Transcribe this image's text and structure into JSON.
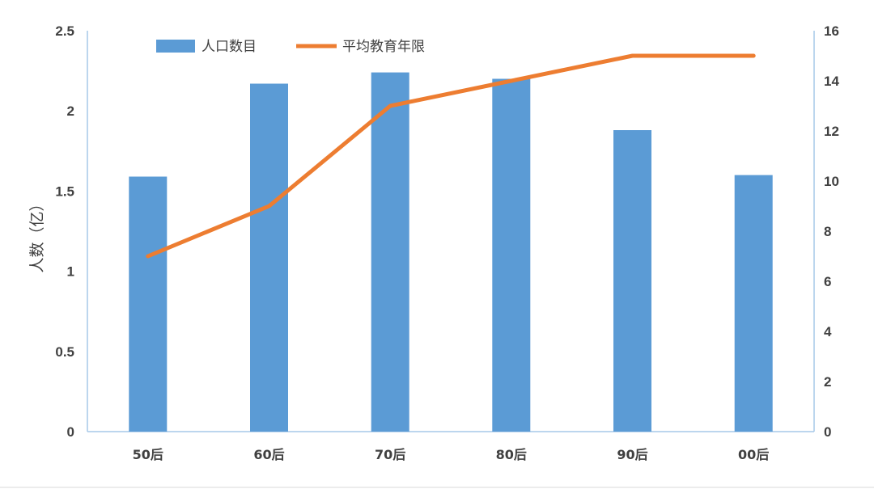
{
  "chart_data": {
    "type": "bar",
    "categories": [
      "50后",
      "60后",
      "70后",
      "80后",
      "90后",
      "00后"
    ],
    "series": [
      {
        "name": "人口数目",
        "type": "bar",
        "axis": "left",
        "values": [
          1.59,
          2.17,
          2.24,
          2.2,
          1.88,
          1.6
        ]
      },
      {
        "name": "平均教育年限",
        "type": "line",
        "axis": "right",
        "values": [
          7,
          9,
          13,
          14,
          15,
          15
        ]
      }
    ],
    "ylabel": "人数（亿）",
    "ylim": [
      0,
      2.5
    ],
    "yticks": [
      "0",
      "0.5",
      "1",
      "1.5",
      "2",
      "2.5"
    ],
    "y2lim": [
      0,
      16
    ],
    "y2ticks": [
      "0",
      "2",
      "4",
      "6",
      "8",
      "10",
      "12",
      "14",
      "16"
    ],
    "legend_position": "top",
    "grid": false,
    "colors": {
      "bar": "#5B9BD5",
      "line": "#ED7D31",
      "axis": "#A6C8E8",
      "text": "#404040"
    }
  }
}
